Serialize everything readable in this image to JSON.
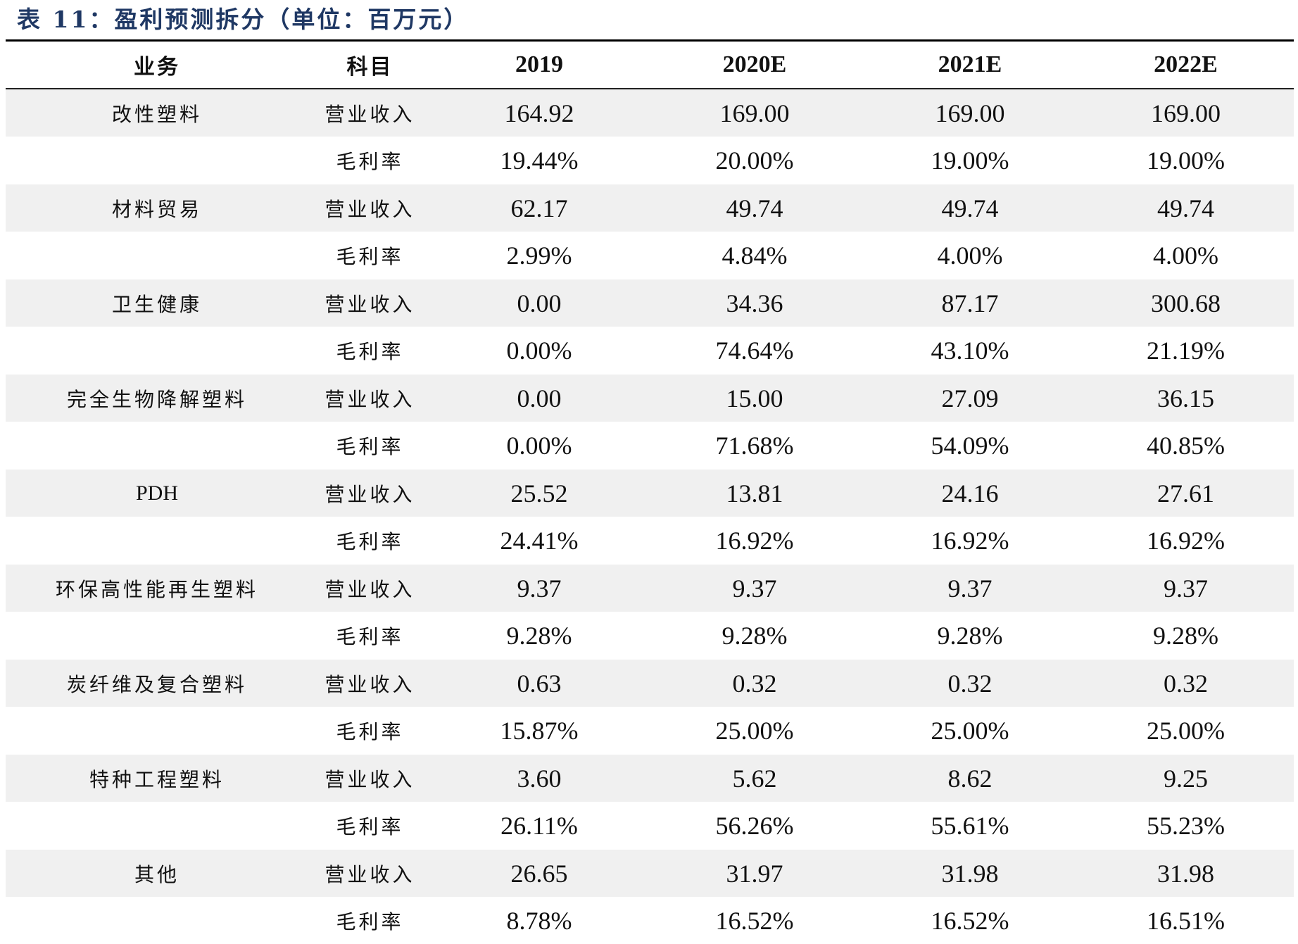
{
  "title": "表 11：盈利预测拆分（单位：百万元）",
  "columns": [
    "业务",
    "科目",
    "2019",
    "2020E",
    "2021E",
    "2022E"
  ],
  "rows": [
    {
      "business": "改性塑料",
      "metric": "营业收入",
      "values": [
        "164.92",
        "169.00",
        "169.00",
        "169.00"
      ]
    },
    {
      "business": "",
      "metric": "毛利率",
      "values": [
        "19.44%",
        "20.00%",
        "19.00%",
        "19.00%"
      ]
    },
    {
      "business": "材料贸易",
      "metric": "营业收入",
      "values": [
        "62.17",
        "49.74",
        "49.74",
        "49.74"
      ]
    },
    {
      "business": "",
      "metric": "毛利率",
      "values": [
        "2.99%",
        "4.84%",
        "4.00%",
        "4.00%"
      ]
    },
    {
      "business": "卫生健康",
      "metric": "营业收入",
      "values": [
        "0.00",
        "34.36",
        "87.17",
        "300.68"
      ]
    },
    {
      "business": "",
      "metric": "毛利率",
      "values": [
        "0.00%",
        "74.64%",
        "43.10%",
        "21.19%"
      ]
    },
    {
      "business": "完全生物降解塑料",
      "metric": "营业收入",
      "values": [
        "0.00",
        "15.00",
        "27.09",
        "36.15"
      ]
    },
    {
      "business": "",
      "metric": "毛利率",
      "values": [
        "0.00%",
        "71.68%",
        "54.09%",
        "40.85%"
      ]
    },
    {
      "business": "PDH",
      "metric": "营业收入",
      "values": [
        "25.52",
        "13.81",
        "24.16",
        "27.61"
      ]
    },
    {
      "business": "",
      "metric": "毛利率",
      "values": [
        "24.41%",
        "16.92%",
        "16.92%",
        "16.92%"
      ]
    },
    {
      "business": "环保高性能再生塑料",
      "metric": "营业收入",
      "values": [
        "9.37",
        "9.37",
        "9.37",
        "9.37"
      ]
    },
    {
      "business": "",
      "metric": "毛利率",
      "values": [
        "9.28%",
        "9.28%",
        "9.28%",
        "9.28%"
      ]
    },
    {
      "business": "炭纤维及复合塑料",
      "metric": "营业收入",
      "values": [
        "0.63",
        "0.32",
        "0.32",
        "0.32"
      ]
    },
    {
      "business": "",
      "metric": "毛利率",
      "values": [
        "15.87%",
        "25.00%",
        "25.00%",
        "25.00%"
      ]
    },
    {
      "business": "特种工程塑料",
      "metric": "营业收入",
      "values": [
        "3.60",
        "5.62",
        "8.62",
        "9.25"
      ]
    },
    {
      "business": "",
      "metric": "毛利率",
      "values": [
        "26.11%",
        "56.26%",
        "55.61%",
        "55.23%"
      ]
    },
    {
      "business": "其他",
      "metric": "营业收入",
      "values": [
        "26.65",
        "31.97",
        "31.98",
        "31.98"
      ]
    },
    {
      "business": "",
      "metric": "毛利率",
      "values": [
        "8.78%",
        "16.52%",
        "16.52%",
        "16.51%"
      ]
    }
  ]
}
